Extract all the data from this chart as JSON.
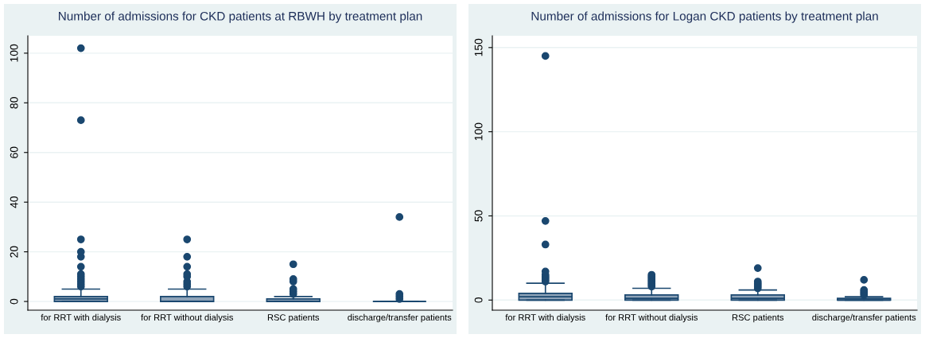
{
  "chart_data": [
    {
      "type": "box",
      "title": "Number of admissions for CKD patients at RBWH by treatment plan",
      "categories": [
        "for RRT with dialysis",
        "for RRT without dialysis",
        "RSC patients",
        "discharge/transfer patients"
      ],
      "boxes": [
        {
          "low": 0,
          "q1": 0,
          "median": 1,
          "q3": 2,
          "high": 5,
          "outliers": [
            6,
            7,
            8,
            9,
            10,
            11,
            14,
            18,
            20,
            25,
            73,
            102
          ]
        },
        {
          "low": 0,
          "q1": 0,
          "median": 0,
          "q3": 2,
          "high": 5,
          "outliers": [
            6,
            7,
            8,
            10,
            11,
            14,
            18,
            25
          ]
        },
        {
          "low": 0,
          "q1": 0,
          "median": 0,
          "q3": 1,
          "high": 2,
          "outliers": [
            3,
            4,
            5,
            8,
            9,
            15
          ]
        },
        {
          "low": 0,
          "q1": 0,
          "median": 0,
          "q3": 0,
          "high": 0,
          "outliers": [
            1,
            2,
            3,
            34
          ]
        }
      ],
      "color": "#1a476f",
      "ylim": [
        -3.5,
        107
      ],
      "yticks": [
        0,
        20,
        40,
        60,
        80,
        100
      ],
      "grid": "y",
      "marker": "circle"
    },
    {
      "type": "box",
      "title": "Number of admissions for Logan CKD patients by treatment plan",
      "categories": [
        "for RRT with dialysis",
        "for RRT without dialysis",
        "RSC patients",
        "discharge/transfer patients"
      ],
      "boxes": [
        {
          "low": 0,
          "q1": 0,
          "median": 2,
          "q3": 4,
          "high": 10,
          "outliers": [
            11,
            12,
            13,
            14,
            15,
            17,
            33,
            47,
            145
          ]
        },
        {
          "low": 0,
          "q1": 0,
          "median": 1,
          "q3": 3,
          "high": 7,
          "outliers": [
            8,
            9,
            10,
            11,
            12,
            13,
            14,
            15
          ]
        },
        {
          "low": 0,
          "q1": 0,
          "median": 1,
          "q3": 3,
          "high": 6,
          "outliers": [
            7,
            8,
            9,
            10,
            11,
            19
          ]
        },
        {
          "low": 0,
          "q1": 0,
          "median": 0,
          "q3": 1,
          "high": 2,
          "outliers": [
            3,
            4,
            5,
            6,
            12
          ]
        }
      ],
      "color": "#1a476f",
      "ylim": [
        -6,
        157
      ],
      "yticks": [
        0,
        50,
        100,
        150
      ],
      "grid": "y",
      "marker": "circle"
    }
  ]
}
